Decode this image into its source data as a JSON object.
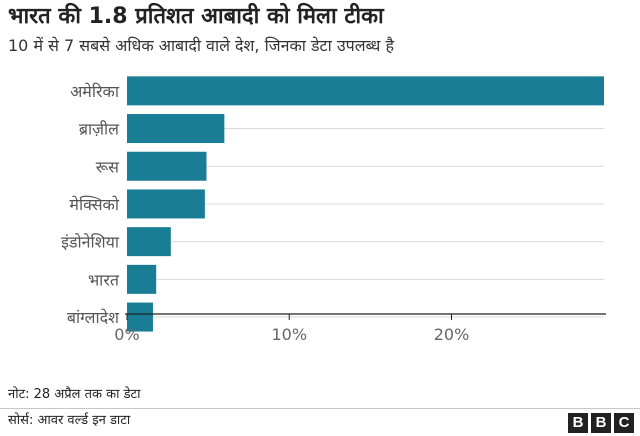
{
  "title": "भारत की 1.8 प्रतिशत आबादी को मिला टीका",
  "subtitle": "10 में से 7 सबसे अधिक आबादी वाले देश, जिनका डेटा उपलब्ध है",
  "note": "नोट: 28 अप्रैल तक का डेटा",
  "source": "सोर्स: आवर वर्ल्ड इन डाटा",
  "logo": {
    "letters": [
      "B",
      "B",
      "C"
    ]
  },
  "colors": {
    "bar": "#1a7d96",
    "grid": "#d9d9d9",
    "axis": "#222222",
    "label": "#555555",
    "tick": "#666666"
  },
  "chart_data": {
    "type": "bar",
    "orientation": "horizontal",
    "categories": [
      "अमेरिका",
      "ब्राज़ील",
      "रूस",
      "मेक्सिको",
      "इंडोनेशिया",
      "भारत",
      "बांग्लादेश"
    ],
    "values": [
      29.4,
      6.0,
      4.9,
      4.8,
      2.7,
      1.8,
      1.6
    ],
    "xlim": [
      0,
      29.4
    ],
    "xticks": [
      0,
      10,
      20
    ],
    "xtick_labels": [
      "0%",
      "10%",
      "20%"
    ],
    "grid": true
  }
}
